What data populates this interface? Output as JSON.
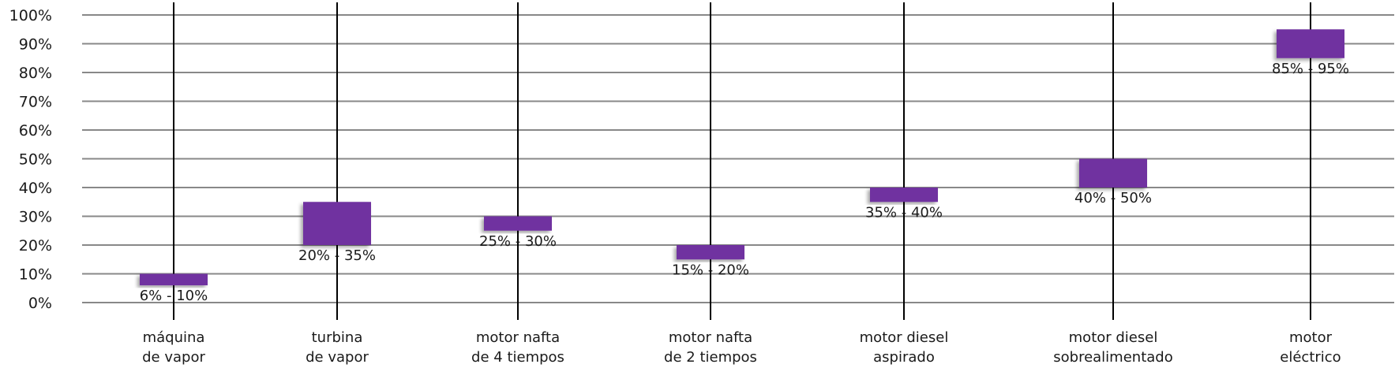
{
  "chart_data": {
    "type": "range-bar",
    "categories": [
      [
        "máquina",
        "de vapor"
      ],
      [
        "turbina",
        "de vapor"
      ],
      [
        "motor nafta",
        "de 4 tiempos"
      ],
      [
        "motor nafta",
        "de 2 tiempos"
      ],
      [
        "motor diesel",
        "aspirado"
      ],
      [
        "motor diesel",
        "sobrealimentado"
      ],
      [
        "motor",
        "eléctrico"
      ]
    ],
    "ranges": [
      [
        6,
        10
      ],
      [
        20,
        35
      ],
      [
        25,
        30
      ],
      [
        15,
        20
      ],
      [
        35,
        40
      ],
      [
        40,
        50
      ],
      [
        85,
        95
      ]
    ],
    "data_labels": [
      "6% - 10%",
      "20% - 35%",
      "25% - 30%",
      "15% - 20%",
      "35% - 40%",
      "40% - 50%",
      "85% - 95%"
    ],
    "y_ticks": [
      "0%",
      "10%",
      "20%",
      "30%",
      "40%",
      "50%",
      "60%",
      "70%",
      "80%",
      "90%",
      "100%"
    ],
    "ylim": [
      0,
      100
    ],
    "grid": true,
    "colors": {
      "bar": "#7030A0",
      "grid": "#888888",
      "category_line": "#000000"
    }
  }
}
